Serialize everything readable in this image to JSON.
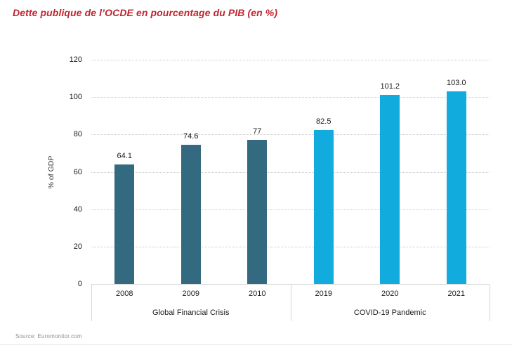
{
  "title": "Dette publique de l’OCDE en pourcentage du PIB (en %)",
  "source": "Source: Euromonitor.com",
  "colors": {
    "title_red": "#c0242e",
    "gfc_bar": "#336a80",
    "covid_bar": "#12abdd",
    "grid": "#c9c9c9",
    "axis": "#d6d6d6",
    "text": "#1a1a1a",
    "source_text": "#8f8f99"
  },
  "chart_data": {
    "type": "bar",
    "title": "Dette publique de l’OCDE en pourcentage du PIB (en %)",
    "xlabel": "",
    "ylabel": "% of GDP",
    "ylim": [
      0,
      120
    ],
    "yticks": [
      0,
      20,
      40,
      60,
      80,
      100,
      120
    ],
    "grid": "horizontal-dotted",
    "legend": "none",
    "groups": [
      {
        "label": "Global Financial Crisis",
        "color": "#336a80",
        "categories": [
          "2008",
          "2009",
          "2010"
        ],
        "values": [
          64.1,
          74.6,
          77
        ],
        "value_labels": [
          "64.1",
          "74.6",
          "77"
        ]
      },
      {
        "label": "COVID-19 Pandemic",
        "color": "#12abdd",
        "categories": [
          "2019",
          "2020",
          "2021"
        ],
        "values": [
          82.5,
          101.2,
          103.0
        ],
        "value_labels": [
          "82.5",
          "101.2",
          "103.0"
        ]
      }
    ]
  }
}
